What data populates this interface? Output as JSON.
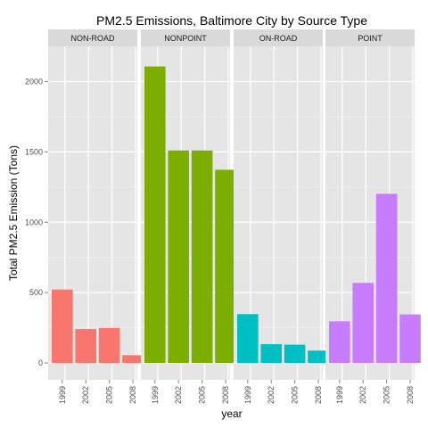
{
  "chart_data": {
    "type": "bar",
    "title": "PM2.5 Emissions, Baltimore City by Source Type",
    "xlabel": "year",
    "ylabel": "Total PM2.5 Emission (Tons)",
    "ylim": [
      -120,
      2250
    ],
    "yticks": [
      0,
      500,
      1000,
      1500,
      2000
    ],
    "categories": [
      "1999",
      "2002",
      "2005",
      "2008"
    ],
    "grid": true,
    "legend": "none",
    "facets": [
      {
        "name": "NON-ROAD",
        "color": "#F8766D",
        "values": [
          522,
          241,
          249,
          55
        ]
      },
      {
        "name": "NONPOINT",
        "color": "#7CAE00",
        "values": [
          2107,
          1510,
          1510,
          1373
        ]
      },
      {
        "name": "ON-ROAD",
        "color": "#00BFC4",
        "values": [
          347,
          134,
          130,
          88
        ]
      },
      {
        "name": "POINT",
        "color": "#C77CFF",
        "values": [
          296,
          569,
          1202,
          345
        ]
      }
    ]
  }
}
